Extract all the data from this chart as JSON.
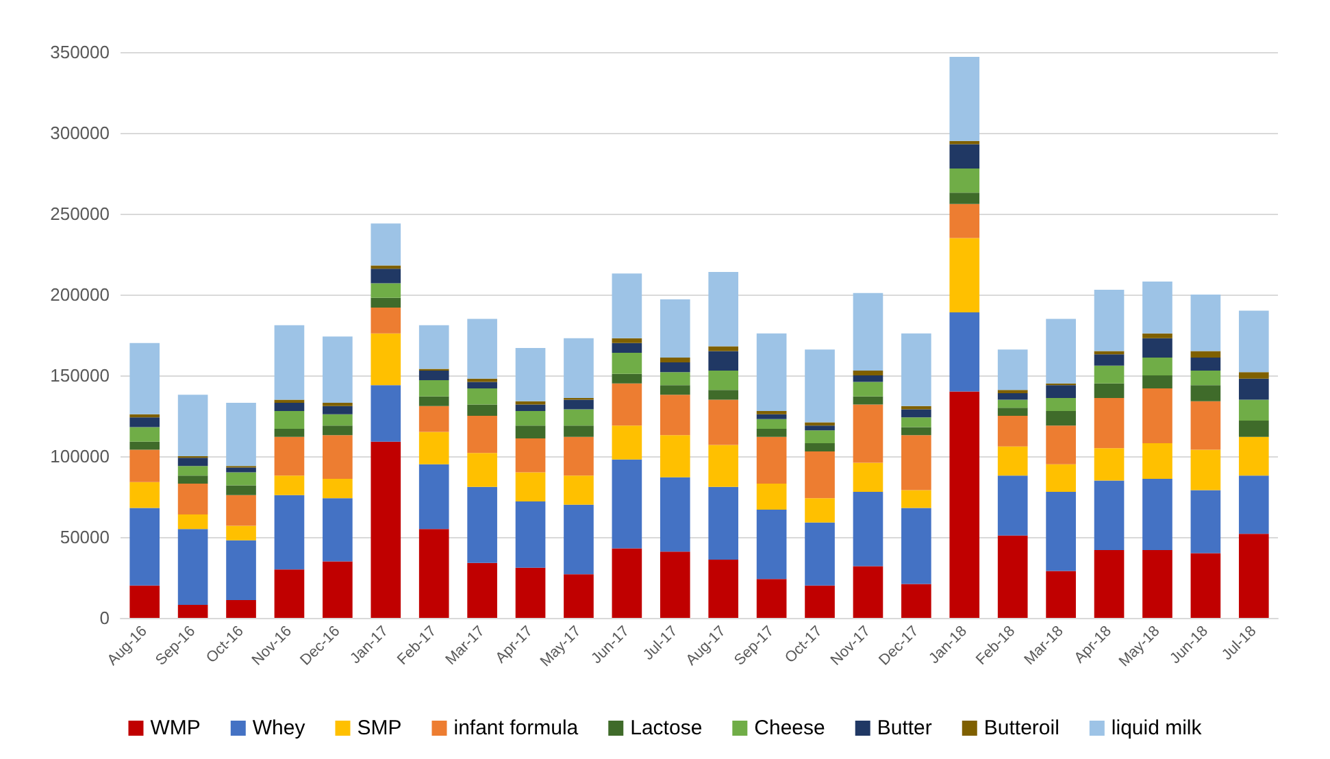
{
  "chart_data": {
    "type": "bar",
    "stacked": true,
    "categories": [
      "Aug-16",
      "Sep-16",
      "Oct-16",
      "Nov-16",
      "Dec-16",
      "Jan-17",
      "Feb-17",
      "Mar-17",
      "Apr-17",
      "May-17",
      "Jun-17",
      "Jul-17",
      "Aug-17",
      "Sep-17",
      "Oct-17",
      "Nov-17",
      "Dec-17",
      "Jan-18",
      "Feb-18",
      "Mar-18",
      "Apr-18",
      "May-18",
      "Jun-18",
      "Jul-18"
    ],
    "series": [
      {
        "name": "WMP",
        "color": "#c00000",
        "values": [
          20000,
          8000,
          11000,
          30000,
          35000,
          109000,
          55000,
          34000,
          31000,
          27000,
          43000,
          41000,
          36000,
          24000,
          20000,
          32000,
          21000,
          140000,
          51000,
          29000,
          42000,
          42000,
          40000,
          52000
        ]
      },
      {
        "name": "Whey",
        "color": "#4472c4",
        "values": [
          48000,
          47000,
          37000,
          46000,
          39000,
          35000,
          40000,
          47000,
          41000,
          43000,
          55000,
          46000,
          45000,
          43000,
          39000,
          46000,
          47000,
          49000,
          37000,
          49000,
          43000,
          44000,
          39000,
          36000
        ]
      },
      {
        "name": "SMP",
        "color": "#ffc000",
        "values": [
          16000,
          9000,
          9000,
          12000,
          12000,
          32000,
          20000,
          21000,
          18000,
          18000,
          21000,
          26000,
          26000,
          16000,
          15000,
          18000,
          11000,
          46000,
          18000,
          17000,
          20000,
          22000,
          25000,
          24000
        ]
      },
      {
        "name": "infant formula",
        "color": "#ed7d31",
        "values": [
          20000,
          19000,
          19000,
          24000,
          27000,
          16000,
          16000,
          23000,
          21000,
          24000,
          26000,
          25000,
          28000,
          29000,
          29000,
          36000,
          34000,
          21000,
          19000,
          24000,
          31000,
          34000,
          30000,
          0
        ]
      },
      {
        "name": "Lactose",
        "color": "#3f6b2a",
        "values": [
          5000,
          5000,
          6000,
          5000,
          6000,
          6000,
          6000,
          7000,
          8000,
          7000,
          6000,
          6000,
          6000,
          5000,
          5000,
          5000,
          5000,
          7000,
          5000,
          9000,
          9000,
          8000,
          10000,
          10000
        ]
      },
      {
        "name": "Cheese",
        "color": "#70ad47",
        "values": [
          9000,
          6000,
          8000,
          11000,
          7000,
          9000,
          10000,
          10000,
          9000,
          10000,
          13000,
          8000,
          12000,
          6000,
          8000,
          9000,
          6000,
          15000,
          5000,
          8000,
          11000,
          11000,
          9000,
          13000
        ]
      },
      {
        "name": "Butter",
        "color": "#203864",
        "values": [
          6000,
          5000,
          3000,
          5000,
          5000,
          9000,
          6000,
          4000,
          4000,
          6000,
          6000,
          6000,
          12000,
          3000,
          3000,
          4000,
          5000,
          15000,
          4000,
          8000,
          7000,
          12000,
          8000,
          13000
        ]
      },
      {
        "name": "Butteroil",
        "color": "#7f6000",
        "values": [
          2000,
          1000,
          1000,
          2000,
          2000,
          2000,
          1000,
          2000,
          2000,
          1000,
          3000,
          3000,
          3000,
          2000,
          2000,
          3000,
          2000,
          2000,
          2000,
          1000,
          2000,
          3000,
          4000,
          4000
        ]
      },
      {
        "name": "liquid milk",
        "color": "#9dc3e6",
        "values": [
          44000,
          38000,
          39000,
          46000,
          41000,
          26000,
          27000,
          37000,
          33000,
          37000,
          40000,
          36000,
          46000,
          48000,
          45000,
          48000,
          45000,
          52000,
          25000,
          40000,
          38000,
          32000,
          35000,
          38000
        ]
      }
    ],
    "ylim": [
      0,
      350000
    ],
    "yticks": [
      0,
      50000,
      100000,
      150000,
      200000,
      250000,
      300000,
      350000
    ],
    "grid": "y",
    "legend": "bottom"
  }
}
